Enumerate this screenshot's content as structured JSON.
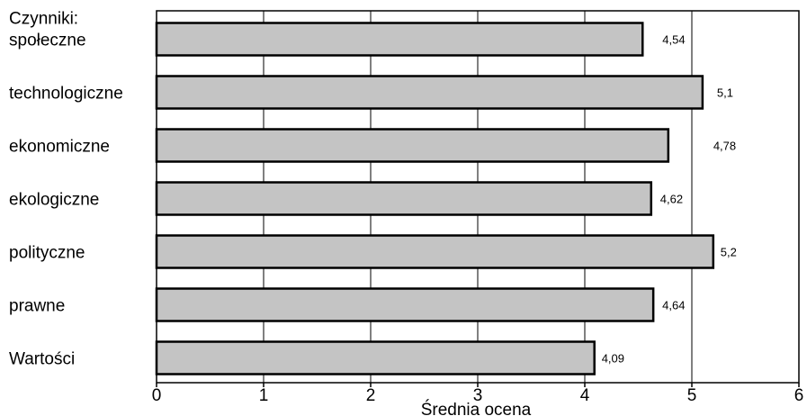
{
  "chart_data": {
    "type": "bar",
    "orientation": "horizontal",
    "header_label": "Czynniki:",
    "categories": [
      "społeczne",
      "technologiczne",
      "ekonomiczne",
      "ekologiczne",
      "polityczne",
      "prawne",
      "Wartości"
    ],
    "values": [
      4.54,
      5.1,
      4.78,
      4.62,
      5.2,
      4.64,
      4.09
    ],
    "value_labels": [
      "4,54",
      "5,1",
      "4,78",
      "4,62",
      "5,2",
      "4,64",
      "4,09"
    ],
    "xlabel": "Średnia ocena",
    "xlim": [
      0,
      6
    ],
    "x_ticks": [
      0,
      1,
      2,
      3,
      4,
      5,
      6
    ],
    "grid": "vertical",
    "bar_color": "#c4c4c4",
    "bar_edge_color": "#000000"
  }
}
